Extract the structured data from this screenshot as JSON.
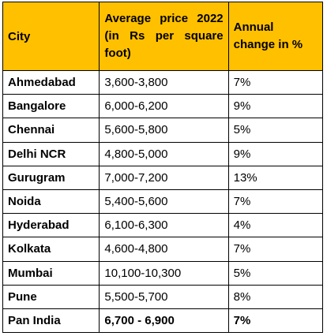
{
  "table": {
    "headers": {
      "city": "City",
      "price": "Average price 2022 (in Rs per square foot)",
      "change": "Annual change in %"
    },
    "rows": [
      {
        "city": "Ahmedabad",
        "price": "3,600-3,800",
        "change": "7%"
      },
      {
        "city": "Bangalore",
        "price": "6,000-6,200",
        "change": "9%"
      },
      {
        "city": "Chennai",
        "price": "5,600-5,800",
        "change": "5%"
      },
      {
        "city": "Delhi NCR",
        "price": "4,800-5,000",
        "change": "9%"
      },
      {
        "city": "Gurugram",
        "price": "7,000-7,200",
        "change": "13%"
      },
      {
        "city": "Noida",
        "price": "5,400-5,600",
        "change": "7%"
      },
      {
        "city": "Hyderabad",
        "price": "6,100-6,300",
        "change": "4%"
      },
      {
        "city": "Kolkata",
        "price": "4,600-4,800",
        "change": "7%"
      },
      {
        "city": "Mumbai",
        "price": "10,100-10,300",
        "change": "5%"
      },
      {
        "city": "Pune",
        "price": "5,500-5,700",
        "change": "8%"
      },
      {
        "city": "Pan India",
        "price": "6,700 - 6,900",
        "change": "7%"
      }
    ]
  },
  "colors": {
    "header_fill": "#ffc000",
    "border": "#000000",
    "text": "#000000"
  }
}
